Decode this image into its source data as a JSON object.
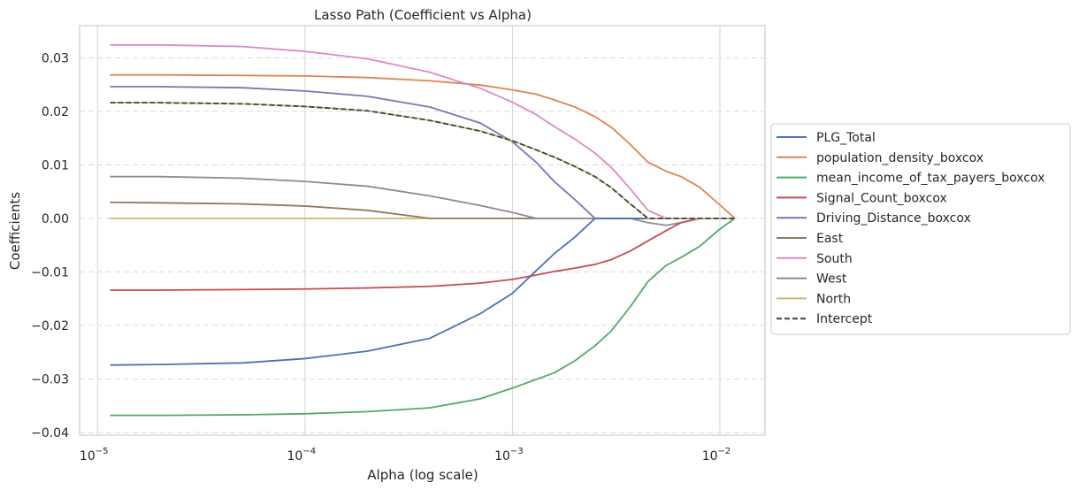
{
  "chart_data": {
    "type": "line",
    "title": "Lasso Path (Coefficient vs Alpha)",
    "xlabel": "Alpha (log scale)",
    "ylabel": "Coefficients",
    "xscale": "log",
    "xlim": [
      8.2e-06,
      0.0165
    ],
    "ylim": [
      -0.0405,
      0.036
    ],
    "xticks": [
      {
        "value": 1e-05,
        "base": "10",
        "exp": "−5"
      },
      {
        "value": 0.0001,
        "base": "10",
        "exp": "−4"
      },
      {
        "value": 0.001,
        "base": "10",
        "exp": "−3"
      },
      {
        "value": 0.01,
        "base": "10",
        "exp": "−2"
      }
    ],
    "yticks": [
      {
        "value": 0.03,
        "label": "0.03"
      },
      {
        "value": 0.02,
        "label": "0.02"
      },
      {
        "value": 0.01,
        "label": "0.01"
      },
      {
        "value": 0.0,
        "label": "0.00"
      },
      {
        "value": -0.01,
        "label": "−0.01"
      },
      {
        "value": -0.02,
        "label": "−0.02"
      },
      {
        "value": -0.03,
        "label": "−0.03"
      },
      {
        "value": -0.04,
        "label": "−0.04"
      }
    ],
    "grid": {
      "x": "solid",
      "y": "dashed"
    },
    "legend_position": "right-outside",
    "x": [
      1.15e-05,
      2e-05,
      5e-05,
      0.0001,
      0.0002,
      0.0004,
      0.0007,
      0.001,
      0.0013,
      0.0016,
      0.002,
      0.0025,
      0.003,
      0.0037,
      0.0045,
      0.0055,
      0.0065,
      0.008,
      0.01,
      0.0118
    ],
    "series": [
      {
        "name": "PLG_Total",
        "color": "#4c72b0",
        "dash": "solid",
        "values": [
          -0.0274,
          -0.0273,
          -0.027,
          -0.0262,
          -0.0248,
          -0.0224,
          -0.0178,
          -0.014,
          -0.0098,
          -0.0065,
          -0.0035,
          0.0,
          0.0,
          0.0,
          0.0,
          0.0,
          0.0,
          0.0,
          0.0,
          0.0
        ]
      },
      {
        "name": "population_density_boxcox",
        "color": "#dd8452",
        "dash": "solid",
        "values": [
          0.0268,
          0.0268,
          0.0267,
          0.0266,
          0.0263,
          0.0257,
          0.0249,
          0.024,
          0.0232,
          0.0221,
          0.0208,
          0.019,
          0.017,
          0.0138,
          0.0105,
          0.0088,
          0.0078,
          0.0058,
          0.0025,
          0.0
        ]
      },
      {
        "name": "mean_income_of_tax_payers_boxcox",
        "color": "#55a868",
        "dash": "solid",
        "values": [
          -0.0368,
          -0.0368,
          -0.0367,
          -0.0365,
          -0.0361,
          -0.0354,
          -0.0337,
          -0.0317,
          -0.0301,
          -0.0288,
          -0.0266,
          -0.0238,
          -0.021,
          -0.0165,
          -0.0118,
          -0.0088,
          -0.0073,
          -0.0052,
          -0.002,
          0.0
        ]
      },
      {
        "name": "Signal_Count_boxcox",
        "color": "#c44e52",
        "dash": "solid",
        "values": [
          -0.0134,
          -0.0134,
          -0.0133,
          -0.0132,
          -0.013,
          -0.0127,
          -0.0121,
          -0.0114,
          -0.0106,
          -0.0099,
          -0.0093,
          -0.0086,
          -0.0077,
          -0.0061,
          -0.0042,
          -0.0023,
          -0.0008,
          0.0,
          0.0,
          0.0
        ]
      },
      {
        "name": "Driving_Distance_boxcox",
        "color": "#8172b3",
        "dash": "solid",
        "values": [
          0.0246,
          0.0246,
          0.0244,
          0.0238,
          0.0228,
          0.0208,
          0.0178,
          0.0143,
          0.0105,
          0.0068,
          0.0035,
          0.0,
          0.0,
          0.0,
          0.0,
          0.0,
          0.0,
          0.0,
          0.0,
          0.0
        ]
      },
      {
        "name": "East",
        "color": "#937860",
        "dash": "solid",
        "values": [
          0.003,
          0.0029,
          0.0027,
          0.0023,
          0.0015,
          0.0,
          0.0,
          0.0,
          0.0,
          0.0,
          0.0,
          0.0,
          0.0,
          0.0,
          0.0,
          0.0,
          0.0,
          0.0,
          0.0,
          0.0
        ]
      },
      {
        "name": "South",
        "color": "#da8bc3",
        "dash": "solid",
        "values": [
          0.0324,
          0.0324,
          0.0321,
          0.0312,
          0.0298,
          0.0273,
          0.0243,
          0.0217,
          0.0194,
          0.0171,
          0.0148,
          0.0122,
          0.0095,
          0.0055,
          0.0015,
          0.0,
          0.0,
          0.0,
          0.0,
          0.0
        ]
      },
      {
        "name": "West",
        "color": "#8c8c8c",
        "dash": "solid",
        "values": [
          0.0078,
          0.0078,
          0.0075,
          0.0069,
          0.006,
          0.0042,
          0.0024,
          0.0011,
          0.0,
          0.0,
          0.0,
          0.0,
          0.0,
          0.0,
          -0.0008,
          -0.0013,
          -0.0008,
          0.0,
          0.0,
          0.0
        ]
      },
      {
        "name": "North",
        "color": "#ccb974",
        "dash": "solid",
        "values": [
          0.0,
          0.0,
          0.0,
          0.0,
          0.0,
          0.0,
          0.0,
          0.0,
          0.0,
          0.0,
          0.0,
          0.0,
          0.0,
          0.0,
          0.0,
          0.0,
          0.0,
          0.0,
          0.0,
          0.0
        ]
      },
      {
        "name": "Intercept",
        "color": "#404040",
        "dash": "dashed",
        "values": [
          0.0216,
          0.0216,
          0.0214,
          0.0209,
          0.0201,
          0.0183,
          0.0163,
          0.0145,
          0.0128,
          0.0114,
          0.0097,
          0.0078,
          0.0057,
          0.0027,
          0.0,
          0.0,
          0.0,
          0.0,
          0.0,
          0.0
        ]
      }
    ],
    "overlay": {
      "under_series": "North",
      "color": "#ccb974",
      "of_series": "Intercept"
    }
  }
}
